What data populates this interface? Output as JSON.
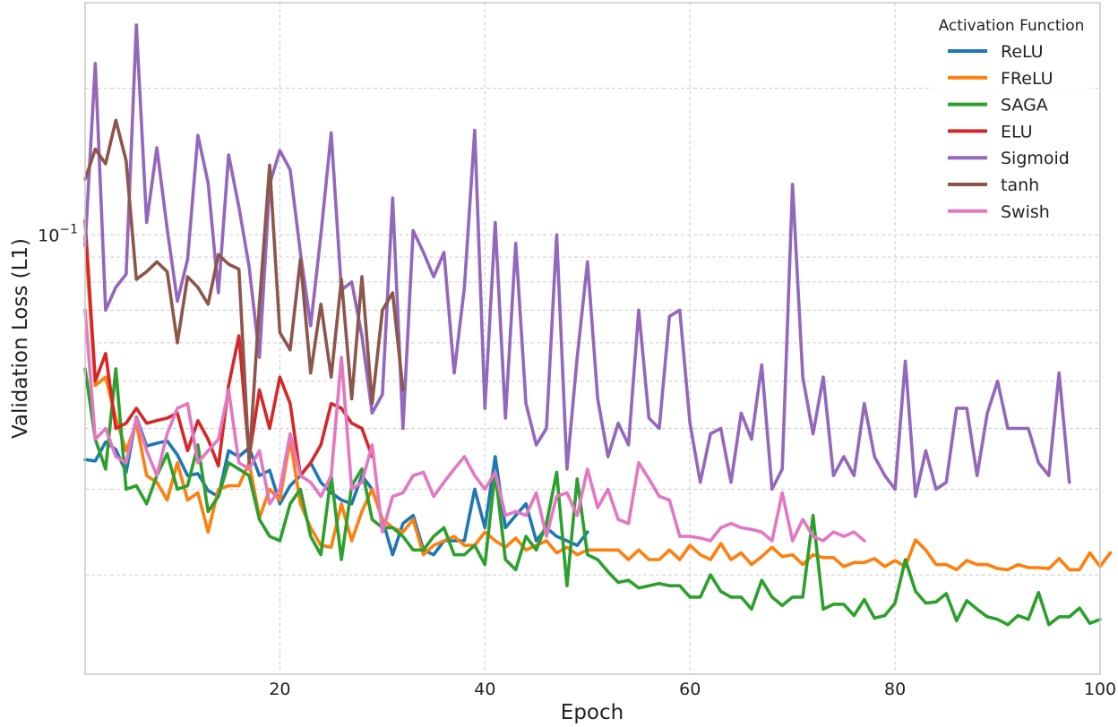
{
  "chart_data": {
    "type": "line",
    "xlabel": "Epoch",
    "ylabel": "Validation Loss (L1)",
    "y_scale": "log",
    "xlim": [
      1,
      100
    ],
    "ylim": [
      0.0125,
      0.3
    ],
    "grid": true,
    "x_ticks": [
      20,
      40,
      60,
      80,
      100
    ],
    "x_tick_labels": [
      "20",
      "40",
      "60",
      "80",
      "100"
    ],
    "y_major_ticks": [
      0.1
    ],
    "y_major_tick_labels": [
      "10^{-1}"
    ],
    "y_minor_ticks": [
      0.02,
      0.03,
      0.04,
      0.05,
      0.06,
      0.07,
      0.08,
      0.09,
      0.2
    ],
    "legend": {
      "title": "Activation Function",
      "position": "top-right"
    },
    "series": [
      {
        "name": "ReLU",
        "color": "#1f77b4",
        "x_start": 1,
        "values": [
          0.0345,
          0.0343,
          0.0375,
          0.0362,
          0.0325,
          0.0422,
          0.0368,
          0.0373,
          0.0377,
          0.0353,
          0.032,
          0.0323,
          0.0298,
          0.029,
          0.036,
          0.035,
          0.0365,
          0.032,
          0.0328,
          0.028,
          0.0305,
          0.032,
          0.034,
          0.031,
          0.0295,
          0.0285,
          0.028,
          0.032,
          0.03,
          0.026,
          0.022,
          0.0255,
          0.0265,
          0.0225,
          0.022,
          0.0235,
          0.0235,
          0.0235,
          0.03,
          0.025,
          0.035,
          0.025,
          0.0265,
          0.028,
          0.0235,
          0.025,
          0.024,
          0.0235,
          0.023,
          0.0245
        ]
      },
      {
        "name": "FReLU",
        "color": "#ff7f0e",
        "x_start": 1,
        "values": [
          0.099,
          0.049,
          0.051,
          0.042,
          0.036,
          0.041,
          0.032,
          0.031,
          0.0285,
          0.034,
          0.0285,
          0.0295,
          0.0245,
          0.03,
          0.0305,
          0.0305,
          0.034,
          0.0262,
          0.03,
          0.0285,
          0.038,
          0.028,
          0.025,
          0.023,
          0.0228,
          0.028,
          0.0235,
          0.027,
          0.03,
          0.026,
          0.025,
          0.0245,
          0.026,
          0.022,
          0.023,
          0.0235,
          0.024,
          0.023,
          0.023,
          0.0245,
          0.0235,
          0.0228,
          0.0238,
          0.0225,
          0.023,
          0.0235,
          0.0222,
          0.0228,
          0.022,
          0.0225,
          0.0225,
          0.0225,
          0.0225,
          0.0215,
          0.0225,
          0.0215,
          0.0215,
          0.0225,
          0.0215,
          0.023,
          0.022,
          0.0215,
          0.0232,
          0.0215,
          0.0222,
          0.021,
          0.0218,
          0.0228,
          0.0218,
          0.022,
          0.021,
          0.022,
          0.0217,
          0.0217,
          0.0208,
          0.0212,
          0.0212,
          0.0216,
          0.0208,
          0.0214,
          0.0208,
          0.0236,
          0.0225,
          0.021,
          0.021,
          0.0205,
          0.0214,
          0.021,
          0.021,
          0.0206,
          0.0205,
          0.021,
          0.0207,
          0.0207,
          0.0206,
          0.0216,
          0.0205,
          0.0205,
          0.0222,
          0.0208,
          0.0222
        ]
      },
      {
        "name": "SAGA",
        "color": "#2ca02c",
        "x_start": 1,
        "values": [
          0.053,
          0.038,
          0.033,
          0.053,
          0.03,
          0.0305,
          0.028,
          0.032,
          0.0355,
          0.03,
          0.0305,
          0.037,
          0.027,
          0.029,
          0.034,
          0.033,
          0.032,
          0.026,
          0.024,
          0.0235,
          0.028,
          0.03,
          0.024,
          0.022,
          0.032,
          0.0215,
          0.0305,
          0.033,
          0.026,
          0.025,
          0.025,
          0.024,
          0.0225,
          0.0225,
          0.024,
          0.025,
          0.022,
          0.022,
          0.023,
          0.021,
          0.0325,
          0.0215,
          0.0205,
          0.024,
          0.0225,
          0.0255,
          0.0325,
          0.019,
          0.0315,
          0.022,
          0.0215,
          0.0203,
          0.0193,
          0.0195,
          0.0188,
          0.019,
          0.0192,
          0.019,
          0.019,
          0.018,
          0.018,
          0.02,
          0.0185,
          0.018,
          0.018,
          0.017,
          0.0195,
          0.018,
          0.0173,
          0.018,
          0.018,
          0.0265,
          0.017,
          0.0174,
          0.0174,
          0.0165,
          0.0178,
          0.0163,
          0.0165,
          0.0175,
          0.0215,
          0.0185,
          0.0175,
          0.0176,
          0.0183,
          0.0161,
          0.0177,
          0.017,
          0.0164,
          0.0162,
          0.0158,
          0.0165,
          0.0162,
          0.0184,
          0.0158,
          0.0164,
          0.0164,
          0.0171,
          0.0159,
          0.0162
        ]
      },
      {
        "name": "ELU",
        "color": "#d62728",
        "x_start": 1,
        "values": [
          0.107,
          0.05,
          0.057,
          0.04,
          0.041,
          0.044,
          0.041,
          0.0415,
          0.042,
          0.043,
          0.036,
          0.0415,
          0.038,
          0.0335,
          0.049,
          0.062,
          0.035,
          0.048,
          0.04,
          0.051,
          0.045,
          0.032,
          0.034,
          0.037,
          0.045,
          0.044,
          0.041,
          0.04,
          0.035
        ]
      },
      {
        "name": "Sigmoid",
        "color": "#9467bd",
        "x_start": 1,
        "values": [
          0.095,
          0.225,
          0.07,
          0.078,
          0.083,
          0.27,
          0.106,
          0.151,
          0.103,
          0.073,
          0.089,
          0.16,
          0.128,
          0.076,
          0.146,
          0.114,
          0.086,
          0.056,
          0.127,
          0.149,
          0.136,
          0.092,
          0.065,
          0.1,
          0.162,
          0.077,
          0.08,
          0.062,
          0.043,
          0.047,
          0.119,
          0.04,
          0.102,
          0.092,
          0.082,
          0.092,
          0.052,
          0.078,
          0.164,
          0.044,
          0.106,
          0.042,
          0.096,
          0.045,
          0.037,
          0.04,
          0.1,
          0.033,
          0.056,
          0.088,
          0.046,
          0.035,
          0.041,
          0.037,
          0.07,
          0.042,
          0.04,
          0.068,
          0.07,
          0.041,
          0.031,
          0.039,
          0.04,
          0.031,
          0.043,
          0.038,
          0.054,
          0.03,
          0.033,
          0.127,
          0.051,
          0.039,
          0.051,
          0.032,
          0.035,
          0.032,
          0.045,
          0.035,
          0.032,
          0.03,
          0.055,
          0.029,
          0.036,
          0.03,
          0.031,
          0.044,
          0.044,
          0.032,
          0.043,
          0.05,
          0.04,
          0.04,
          0.04,
          0.034,
          0.032,
          0.052,
          0.031
        ]
      },
      {
        "name": "tanh",
        "color": "#8c564b",
        "x_start": 1,
        "values": [
          0.13,
          0.15,
          0.14,
          0.172,
          0.142,
          0.081,
          0.084,
          0.088,
          0.084,
          0.06,
          0.082,
          0.078,
          0.072,
          0.091,
          0.087,
          0.085,
          0.034,
          0.072,
          0.139,
          0.063,
          0.058,
          0.089,
          0.052,
          0.072,
          0.051,
          0.081,
          0.046,
          0.082,
          0.045,
          0.07,
          0.076,
          0.048
        ]
      },
      {
        "name": "Swish",
        "color": "#e377c2",
        "x_start": 1,
        "values": [
          0.07,
          0.038,
          0.04,
          0.035,
          0.034,
          0.042,
          0.036,
          0.032,
          0.039,
          0.044,
          0.045,
          0.034,
          0.036,
          0.038,
          0.048,
          0.034,
          0.033,
          0.036,
          0.028,
          0.03,
          0.039,
          0.032,
          0.031,
          0.029,
          0.032,
          0.056,
          0.03,
          0.031,
          0.037,
          0.0245,
          0.029,
          0.0295,
          0.032,
          0.0325,
          0.029,
          0.031,
          0.033,
          0.035,
          0.032,
          0.03,
          0.0325,
          0.0265,
          0.027,
          0.0265,
          0.0295,
          0.024,
          0.029,
          0.0295,
          0.0265,
          0.033,
          0.0275,
          0.03,
          0.026,
          0.0255,
          0.034,
          0.0315,
          0.029,
          0.0285,
          0.024,
          0.024,
          0.0238,
          0.0235,
          0.025,
          0.0255,
          0.025,
          0.0248,
          0.0245,
          0.0235,
          0.0295,
          0.0235,
          0.026,
          0.024,
          0.0235,
          0.0245,
          0.024,
          0.0245,
          0.0235
        ]
      }
    ]
  }
}
